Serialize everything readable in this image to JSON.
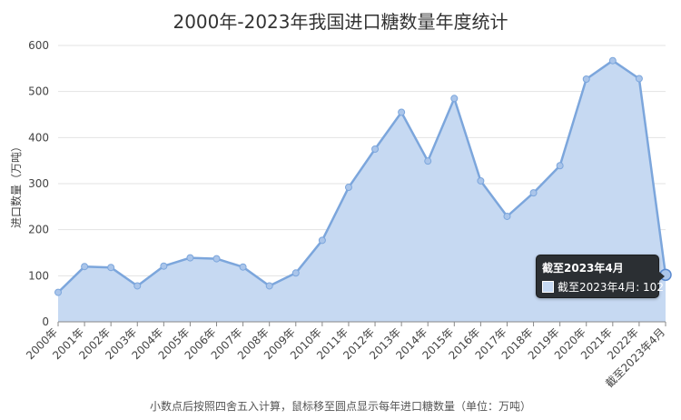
{
  "chart_data": {
    "type": "area",
    "title": "2000年-2023年我国进口糖数量年度统计",
    "ylabel": "进口数量（万吨）",
    "xlabel": "",
    "ylim": [
      0,
      600
    ],
    "yticks": [
      0,
      100,
      200,
      300,
      400,
      500,
      600
    ],
    "grid": true,
    "categories": [
      "2000年",
      "2001年",
      "2002年",
      "2003年",
      "2004年",
      "2005年",
      "2006年",
      "2007年",
      "2008年",
      "2009年",
      "2010年",
      "2011年",
      "2012年",
      "2013年",
      "2014年",
      "2015年",
      "2016年",
      "2017年",
      "2018年",
      "2019年",
      "2020年",
      "2021年",
      "2022年",
      "截至2023年4月"
    ],
    "values": [
      64,
      120,
      118,
      78,
      121,
      139,
      137,
      119,
      78,
      106,
      177,
      292,
      375,
      455,
      349,
      485,
      306,
      229,
      280,
      339,
      527,
      567,
      528,
      102
    ],
    "colors": {
      "line": "#7ca6dc",
      "fill": "#c6d9f2",
      "point": "#aac5ea"
    },
    "footnote": "小数点后按照四舍五入计算，鼠标移至圆点显示每年进口糖数量（单位：万吨）",
    "tooltip": {
      "title": "截至2023年4月",
      "series_label": "截至2023年4月",
      "value": "102"
    }
  }
}
